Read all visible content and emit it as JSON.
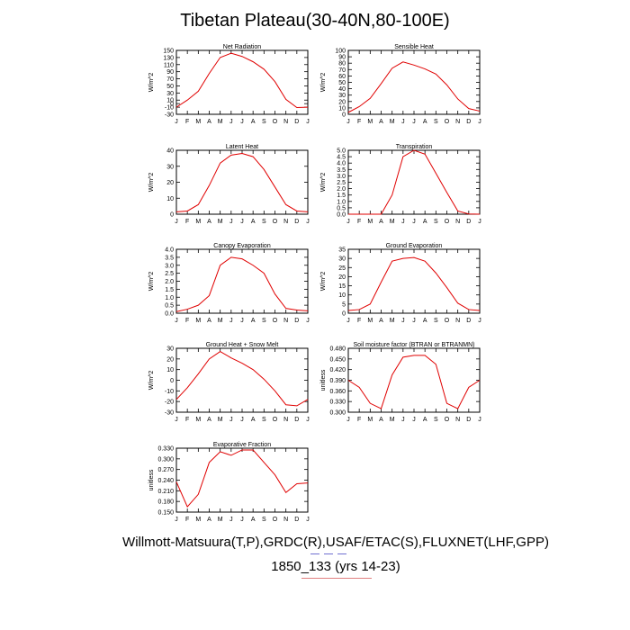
{
  "page": {
    "title": "Tibetan Plateau(30-40N,80-100E)",
    "footer_line1": "Willmott-Matsuura(T,P),GRDC(R),USAF/ETAC(S),FLUXNET(LHF,GPP)",
    "footer_line2": "1850_133 (yrs 14-23)",
    "line_color": "#e00000",
    "rule_colors": [
      "#7070d0",
      "#e08080"
    ]
  },
  "chart_data": [
    {
      "type": "line",
      "title": "Net Radiation",
      "ylabel": "W/m^2",
      "categories": [
        "J",
        "F",
        "M",
        "A",
        "M",
        "J",
        "J",
        "A",
        "S",
        "O",
        "N",
        "D",
        "J"
      ],
      "ylim": [
        -30,
        150
      ],
      "yticks": [
        "-30",
        "-10",
        "0",
        "10",
        "30",
        "50",
        "70",
        "90",
        "110",
        "130",
        "150"
      ],
      "values": [
        -10,
        10,
        35,
        85,
        130,
        142,
        133,
        118,
        97,
        62,
        12,
        -11,
        -10
      ]
    },
    {
      "type": "line",
      "title": "Sensible Heat",
      "ylabel": "W/m^2",
      "categories": [
        "J",
        "F",
        "M",
        "A",
        "M",
        "J",
        "J",
        "A",
        "S",
        "O",
        "N",
        "D",
        "J"
      ],
      "ylim": [
        0,
        100
      ],
      "yticks": [
        "0",
        "10",
        "20",
        "30",
        "40",
        "50",
        "60",
        "70",
        "80",
        "90",
        "100"
      ],
      "values": [
        3,
        12,
        25,
        48,
        72,
        82,
        77,
        71,
        63,
        46,
        24,
        9,
        5
      ]
    },
    {
      "type": "line",
      "title": "Latent Heat",
      "ylabel": "W/m^2",
      "categories": [
        "J",
        "F",
        "M",
        "A",
        "M",
        "J",
        "J",
        "A",
        "S",
        "O",
        "N",
        "D",
        "J"
      ],
      "ylim": [
        0,
        40
      ],
      "yticks": [
        "0",
        "10",
        "20",
        "30",
        "40"
      ],
      "values": [
        1.5,
        2,
        6,
        18,
        32,
        37,
        38,
        36,
        28,
        17,
        6,
        2,
        1.5
      ]
    },
    {
      "type": "line",
      "title": "Transpiration",
      "ylabel": "W/m^2",
      "categories": [
        "J",
        "F",
        "M",
        "A",
        "M",
        "J",
        "J",
        "A",
        "S",
        "O",
        "N",
        "D",
        "J"
      ],
      "ylim": [
        0,
        5
      ],
      "yticks": [
        "0.0",
        "0.5",
        "1.0",
        "1.5",
        "2.0",
        "2.5",
        "3.0",
        "3.5",
        "4.0",
        "4.5",
        "5.0"
      ],
      "values": [
        0,
        0,
        0,
        0,
        1.5,
        4.5,
        5.0,
        4.7,
        3.2,
        1.7,
        0.25,
        0.02,
        0
      ]
    },
    {
      "type": "line",
      "title": "Canopy Evaporation",
      "ylabel": "W/m^2",
      "categories": [
        "J",
        "F",
        "M",
        "A",
        "M",
        "J",
        "J",
        "A",
        "S",
        "O",
        "N",
        "D",
        "J"
      ],
      "ylim": [
        0,
        4
      ],
      "yticks": [
        "0.0",
        "0.5",
        "1.0",
        "1.5",
        "2.0",
        "2.5",
        "3.0",
        "3.5",
        "4.0"
      ],
      "values": [
        0.1,
        0.25,
        0.5,
        1.1,
        3.0,
        3.5,
        3.4,
        3.0,
        2.5,
        1.2,
        0.3,
        0.2,
        0.15
      ]
    },
    {
      "type": "line",
      "title": "Ground Evaporation",
      "ylabel": "W/m^2",
      "categories": [
        "J",
        "F",
        "M",
        "A",
        "M",
        "J",
        "J",
        "A",
        "S",
        "O",
        "N",
        "D",
        "J"
      ],
      "ylim": [
        0,
        35
      ],
      "yticks": [
        "0",
        "5",
        "10",
        "15",
        "20",
        "25",
        "30",
        "35"
      ],
      "values": [
        1.5,
        2,
        5,
        17,
        28.5,
        30,
        30.5,
        28.5,
        22,
        14,
        5.5,
        2,
        1.5
      ]
    },
    {
      "type": "line",
      "title": "Ground Heat + Snow Melt",
      "ylabel": "W/m^2",
      "categories": [
        "J",
        "F",
        "M",
        "A",
        "M",
        "J",
        "J",
        "A",
        "S",
        "O",
        "N",
        "D",
        "J"
      ],
      "ylim": [
        -30,
        30
      ],
      "yticks": [
        "-30",
        "-20",
        "-10",
        "0",
        "10",
        "20",
        "30"
      ],
      "values": [
        -18,
        -7,
        6,
        20,
        27,
        21,
        16,
        10,
        1,
        -10,
        -23,
        -24,
        -18
      ]
    },
    {
      "type": "line",
      "title": "Soil moisture factor (BTRAN or BTRANMN)",
      "ylabel": "unitless",
      "categories": [
        "J",
        "F",
        "M",
        "A",
        "M",
        "J",
        "J",
        "A",
        "S",
        "O",
        "N",
        "D",
        "J"
      ],
      "ylim": [
        0.3,
        0.48
      ],
      "yticks": [
        "0.300",
        "0.330",
        "0.360",
        "0.390",
        "0.420",
        "0.450",
        "0.480"
      ],
      "values": [
        0.39,
        0.37,
        0.325,
        0.31,
        0.405,
        0.455,
        0.46,
        0.46,
        0.435,
        0.325,
        0.31,
        0.37,
        0.39
      ]
    },
    {
      "type": "line",
      "title": "Evaporative Fraction",
      "ylabel": "unitless",
      "categories": [
        "J",
        "F",
        "M",
        "A",
        "M",
        "J",
        "J",
        "A",
        "S",
        "O",
        "N",
        "D",
        "J"
      ],
      "ylim": [
        0.15,
        0.33
      ],
      "yticks": [
        "0.150",
        "0.180",
        "0.210",
        "0.240",
        "0.270",
        "0.300",
        "0.330"
      ],
      "values": [
        0.235,
        0.165,
        0.2,
        0.29,
        0.32,
        0.31,
        0.325,
        0.325,
        0.29,
        0.255,
        0.205,
        0.23,
        0.232
      ]
    }
  ]
}
